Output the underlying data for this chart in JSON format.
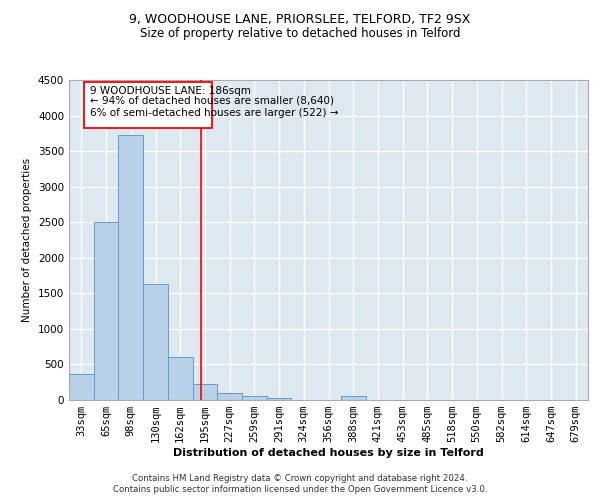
{
  "title1": "9, WOODHOUSE LANE, PRIORSLEE, TELFORD, TF2 9SX",
  "title2": "Size of property relative to detached houses in Telford",
  "xlabel": "Distribution of detached houses by size in Telford",
  "ylabel": "Number of detached properties",
  "categories": [
    "33sqm",
    "65sqm",
    "98sqm",
    "130sqm",
    "162sqm",
    "195sqm",
    "227sqm",
    "259sqm",
    "291sqm",
    "324sqm",
    "356sqm",
    "388sqm",
    "421sqm",
    "453sqm",
    "485sqm",
    "518sqm",
    "550sqm",
    "582sqm",
    "614sqm",
    "647sqm",
    "679sqm"
  ],
  "values": [
    370,
    2500,
    3720,
    1630,
    600,
    230,
    105,
    60,
    35,
    0,
    0,
    50,
    0,
    0,
    0,
    0,
    0,
    0,
    0,
    0,
    0
  ],
  "bar_color": "#b8d0e8",
  "bar_edge_color": "#6699cc",
  "vline_color": "red",
  "annotation_line1": "9 WOODHOUSE LANE: 186sqm",
  "annotation_line2": "← 94% of detached houses are smaller (8,640)",
  "annotation_line3": "6% of semi-detached houses are larger (522) →",
  "annotation_box_color": "white",
  "annotation_box_edge_color": "red",
  "ylim": [
    0,
    4500
  ],
  "background_color": "#dde8f0",
  "grid_color": "white",
  "footer1": "Contains HM Land Registry data © Crown copyright and database right 2024.",
  "footer2": "Contains public sector information licensed under the Open Government Licence v3.0."
}
